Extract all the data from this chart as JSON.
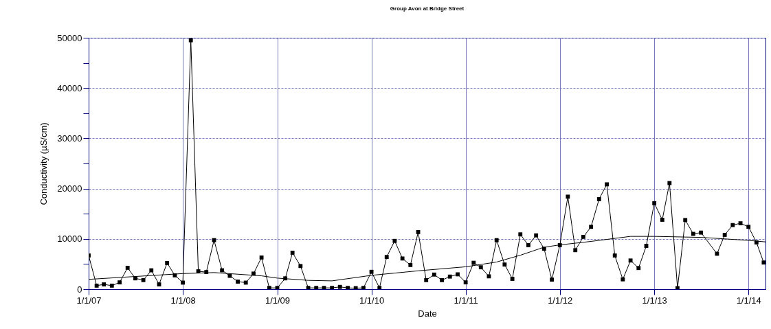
{
  "chart_data": {
    "type": "line",
    "title": "Group Avon at Bridge Street",
    "xlabel": "Date",
    "ylabel": "Conductivity (µS/cm)",
    "xlim": [
      "2007-01-01",
      "2014-03-08"
    ],
    "xticks": [
      {
        "value": "2007-01-01",
        "label": "1/1/07"
      },
      {
        "value": "2008-01-01",
        "label": "1/1/08"
      },
      {
        "value": "2009-01-01",
        "label": "1/1/09"
      },
      {
        "value": "2010-01-01",
        "label": "1/1/10"
      },
      {
        "value": "2011-01-01",
        "label": "1/1/11"
      },
      {
        "value": "2012-01-01",
        "label": "1/1/12"
      },
      {
        "value": "2013-01-01",
        "label": "1/1/13"
      },
      {
        "value": "2014-01-01",
        "label": "1/1/14"
      }
    ],
    "ylim": [
      0,
      50000
    ],
    "yticks": [
      0,
      {
        "value": 5000,
        "label": null
      },
      10000,
      {
        "value": 15000,
        "label": null
      },
      20000,
      {
        "value": 25000,
        "label": null
      },
      30000,
      {
        "value": 35000,
        "label": null
      },
      40000,
      {
        "value": 45000,
        "label": null
      },
      50000
    ],
    "grid": true,
    "series": [
      {
        "color": "#000000",
        "marker": "square",
        "x": [
          "2007-01",
          "2007-02",
          "2007-03",
          "2007-04",
          "2007-05",
          "2007-06",
          "2007-07",
          "2007-08",
          "2007-09",
          "2007-10",
          "2007-11",
          "2007-12",
          "2008-01",
          "2008-02",
          "2008-03",
          "2008-04",
          "2008-05",
          "2008-06",
          "2008-07",
          "2008-08",
          "2008-09",
          "2008-10",
          "2008-11",
          "2008-12",
          "2009-01",
          "2009-02",
          "2009-03",
          "2009-04",
          "2009-05",
          "2009-06",
          "2009-07",
          "2009-08",
          "2009-09",
          "2009-10",
          "2009-11",
          "2009-12",
          "2010-01",
          "2010-02",
          "2010-03",
          "2010-04",
          "2010-05",
          "2010-06",
          "2010-07",
          "2010-08",
          "2010-09",
          "2010-10",
          "2010-11",
          "2010-12",
          "2011-01",
          "2011-02",
          "2011-03",
          "2011-04",
          "2011-05",
          "2011-06",
          "2011-07",
          "2011-08",
          "2011-09",
          "2011-10",
          "2011-11",
          "2011-12",
          "2012-01",
          "2012-02",
          "2012-03",
          "2012-04",
          "2012-05",
          "2012-06",
          "2012-07",
          "2012-08",
          "2012-09",
          "2012-10",
          "2012-11",
          "2012-12",
          "2013-01",
          "2013-02",
          "2013-03",
          "2013-04",
          "2013-05",
          "2013-06",
          "2013-07",
          "2013-09",
          "2013-10",
          "2013-11",
          "2013-12",
          "2014-01",
          "2014-02",
          "2014-03"
        ],
        "values": [
          6700,
          700,
          950,
          700,
          1350,
          4250,
          2150,
          1800,
          3750,
          950,
          5200,
          2750,
          1300,
          49500,
          3550,
          3400,
          9750,
          3750,
          2650,
          1500,
          1300,
          3100,
          6300,
          250,
          250,
          2150,
          7250,
          4600,
          250,
          250,
          250,
          250,
          450,
          250,
          200,
          250,
          3450,
          250,
          6400,
          9600,
          6100,
          4800,
          11350,
          1800,
          2900,
          1800,
          2500,
          2950,
          1350,
          5250,
          4350,
          2550,
          9750,
          4900,
          2050,
          10900,
          8750,
          10700,
          8050,
          1900,
          8750,
          18400,
          7750,
          10400,
          12400,
          17900,
          20850,
          6700,
          1950,
          5700,
          4200,
          8600,
          17100,
          13800,
          21100,
          200,
          13750,
          11000,
          11250,
          7050,
          10800,
          12750,
          13100,
          12400,
          9300,
          5300
        ]
      },
      {
        "color": "#000000",
        "marker": "none",
        "x": [
          "2007-01-01",
          "2008-01-01",
          "2008-05-01",
          "2008-11-01",
          "2009-01-01",
          "2009-05-01",
          "2009-08-01",
          "2010-01-01",
          "2010-07-01",
          "2011-01-01",
          "2011-05-01",
          "2011-08-01",
          "2011-11-01",
          "2012-01-01",
          "2012-05-01",
          "2012-10-01",
          "2013-01-01",
          "2013-07-01",
          "2014-01-01",
          "2014-03-08"
        ],
        "values": [
          1950,
          3100,
          3300,
          2650,
          2200,
          1750,
          1650,
          2750,
          3650,
          4450,
          5400,
          6750,
          8350,
          8800,
          9500,
          10500,
          10500,
          10300,
          9700,
          9400
        ]
      }
    ]
  }
}
